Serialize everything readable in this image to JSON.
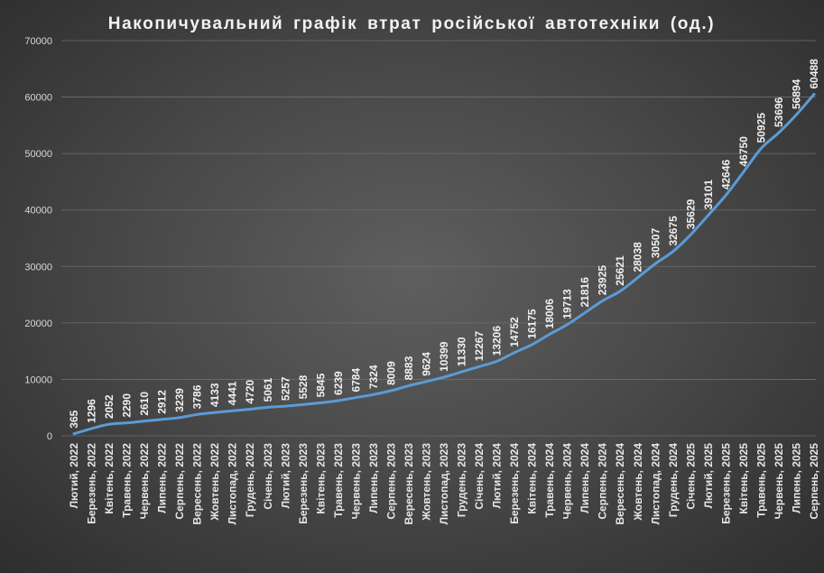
{
  "chart_data": {
    "type": "line",
    "title": "Накопичувальний графік втрат російської автотехніки (од.)",
    "xlabel": "",
    "ylabel": "",
    "ylim": [
      0,
      70000
    ],
    "yticks": [
      0,
      10000,
      20000,
      30000,
      40000,
      50000,
      60000,
      70000
    ],
    "grid": true,
    "legend": "none",
    "line_color": "#5b9bd5",
    "categories": [
      "Лютий, 2022",
      "Березень, 2022",
      "Квітень, 2022",
      "Травень, 2022",
      "Червень, 2022",
      "Липень, 2022",
      "Серпень, 2022",
      "Вересень, 2022",
      "Жовтень, 2022",
      "Листопад, 2022",
      "Грудень, 2022",
      "Січень, 2023",
      "Лютий, 2023",
      "Березень, 2023",
      "Квітень, 2023",
      "Травень, 2023",
      "Червень, 2023",
      "Липень, 2023",
      "Серпень, 2023",
      "Вересень, 2023",
      "Жовтень, 2023",
      "Листопад, 2023",
      "Грудень, 2023",
      "Січень, 2024",
      "Лютий, 2024",
      "Березень, 2024",
      "Квітень, 2024",
      "Травень, 2024",
      "Червень, 2024",
      "Липень, 2024",
      "Серпень, 2024",
      "Вересень, 2024",
      "Жовтень, 2024",
      "Листопад, 2024",
      "Грудень, 2024",
      "Січень, 2025",
      "Лютий, 2025",
      "Березень, 2025",
      "Квітень, 2025",
      "Травень, 2025",
      "Червень, 2025",
      "Липень, 2025",
      "Серпень, 2025"
    ],
    "series": [
      {
        "values": [
          365,
          1296,
          2052,
          2290,
          2610,
          2912,
          3239,
          3786,
          4133,
          4441,
          4720,
          5061,
          5257,
          5528,
          5845,
          6239,
          6784,
          7324,
          8009,
          8883,
          9624,
          10399,
          11330,
          12267,
          13206,
          14752,
          16175,
          18006,
          19713,
          21816,
          23925,
          25621,
          28038,
          30507,
          32675,
          35629,
          39101,
          42646,
          46750,
          50925,
          53696,
          56894,
          60488
        ]
      }
    ]
  }
}
